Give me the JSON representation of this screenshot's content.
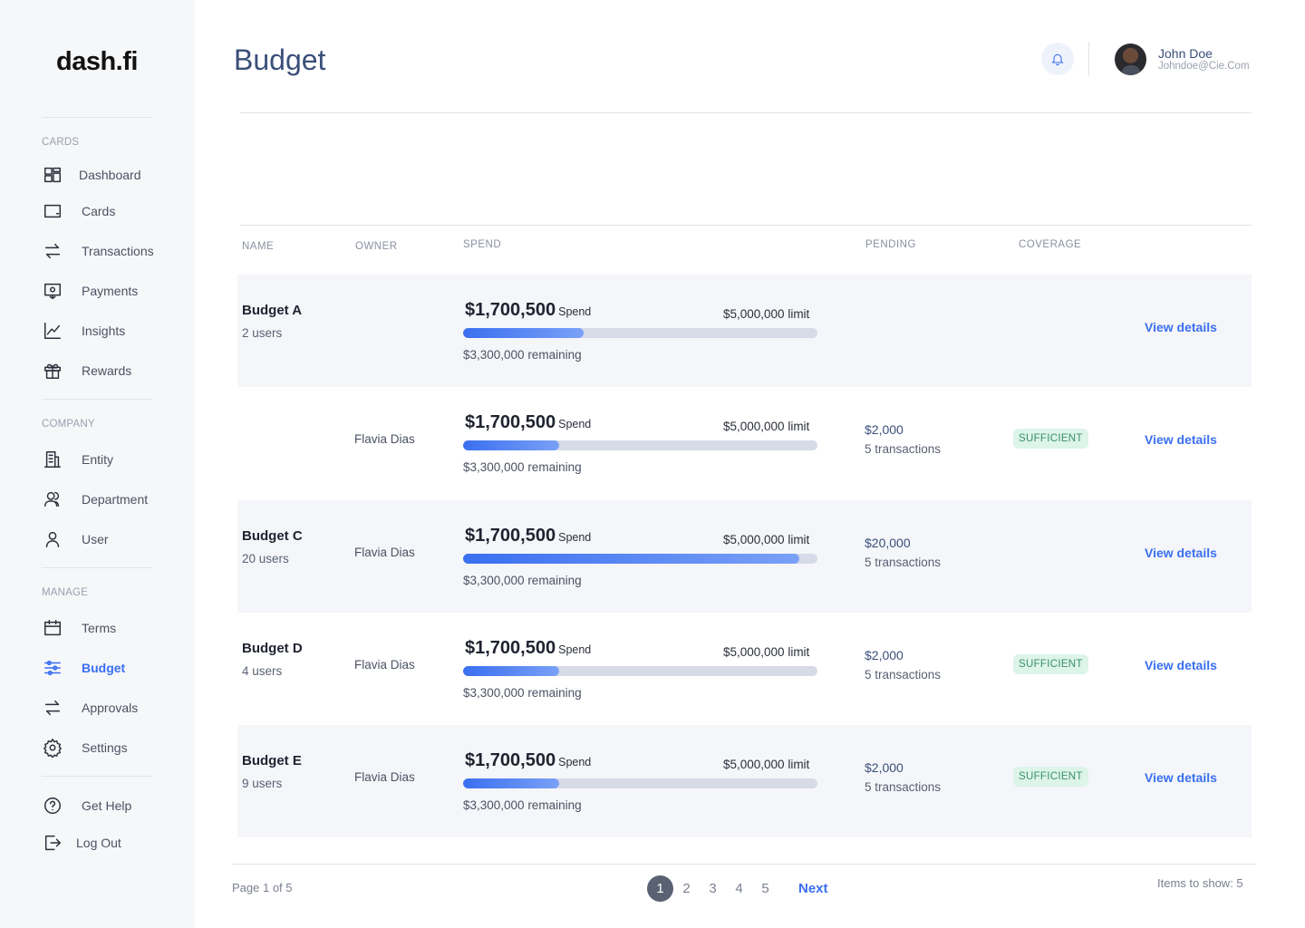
{
  "brand": {
    "logo": "dash.fi"
  },
  "sidebar": {
    "sections": [
      "CARDS",
      "COMPANY",
      "MANAGE"
    ],
    "items": [
      {
        "label": "Dashboard",
        "icon": "dashboard-icon"
      },
      {
        "label": "Cards",
        "icon": "card-icon"
      },
      {
        "label": "Transactions",
        "icon": "arrows-swap-icon"
      },
      {
        "label": "Payments",
        "icon": "payments-icon"
      },
      {
        "label": "Insights",
        "icon": "chart-line-icon"
      },
      {
        "label": "Rewards",
        "icon": "gift-icon"
      },
      {
        "label": "Entity",
        "icon": "building-icon"
      },
      {
        "label": "Department",
        "icon": "users-icon"
      },
      {
        "label": "User",
        "icon": "user-icon"
      },
      {
        "label": "Terms",
        "icon": "calendar-icon"
      },
      {
        "label": "Budget",
        "icon": "sliders-icon",
        "active": true
      },
      {
        "label": "Approvals",
        "icon": "arrows-swap-icon"
      },
      {
        "label": "Settings",
        "icon": "gear-icon"
      },
      {
        "label": "Get Help",
        "icon": "help-icon"
      },
      {
        "label": "Log Out",
        "icon": "logout-icon"
      }
    ]
  },
  "header": {
    "title": "Budget",
    "user": {
      "name": "John Doe",
      "email": "Johndoe@Cie.Com"
    }
  },
  "table": {
    "columns": [
      "NAME",
      "OWNER",
      "SPEND",
      "PENDING",
      "COVERAGE"
    ],
    "spend_label": "Spend",
    "view_label": "View details",
    "rows": [
      {
        "name": "Budget A",
        "users": "2 users",
        "owner": "",
        "spend": "$1,700,500",
        "limit": "$5,000,000 limit",
        "remaining": "$3,300,000 remaining",
        "progress": 0.34,
        "pending": "",
        "pending_tx": "",
        "coverage": ""
      },
      {
        "name": "",
        "users": "",
        "owner": "Flavia Dias",
        "spend": "$1,700,500",
        "limit": "$5,000,000 limit",
        "remaining": "$3,300,000 remaining",
        "progress": 0.27,
        "pending": "$2,000",
        "pending_tx": "5 transactions",
        "coverage": "SUFFICIENT"
      },
      {
        "name": "Budget C",
        "users": "20 users",
        "owner": "Flavia Dias",
        "spend": "$1,700,500",
        "limit": "$5,000,000 limit",
        "remaining": "$3,300,000 remaining",
        "progress": 0.95,
        "pending": "$20,000",
        "pending_tx": "5 transactions",
        "coverage": ""
      },
      {
        "name": "Budget D",
        "users": "4 users",
        "owner": "Flavia Dias",
        "spend": "$1,700,500",
        "limit": "$5,000,000 limit",
        "remaining": "$3,300,000 remaining",
        "progress": 0.27,
        "pending": "$2,000",
        "pending_tx": "5 transactions",
        "coverage": "SUFFICIENT"
      },
      {
        "name": "Budget E",
        "users": "9 users",
        "owner": "Flavia Dias",
        "spend": "$1,700,500",
        "limit": "$5,000,000 limit",
        "remaining": "$3,300,000 remaining",
        "progress": 0.27,
        "pending": "$2,000",
        "pending_tx": "5 transactions",
        "coverage": "SUFFICIENT"
      }
    ]
  },
  "pagination": {
    "page_info": "Page 1 of 5",
    "pages": [
      "1",
      "2",
      "3",
      "4",
      "5"
    ],
    "current": "1",
    "next_label": "Next",
    "items_to_show": "Items to show:  5"
  },
  "colors": {
    "accent": "#3a6ff0",
    "badge_bg": "#dcf4ea",
    "badge_text": "#3a8f6a",
    "row_shade": "#f4f6f9"
  }
}
